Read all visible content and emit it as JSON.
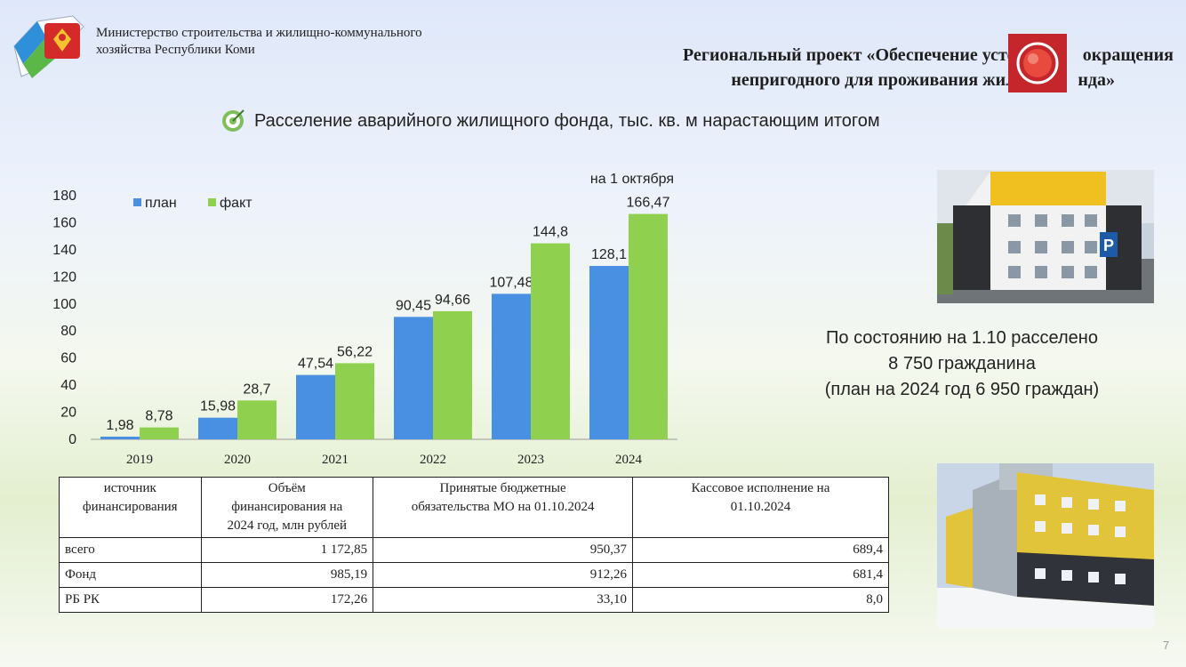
{
  "header": {
    "ministry_line1": "Министерство строительства и жилищно-коммунального",
    "ministry_line2": "хозяйства Республики Коми",
    "project_line1": "Региональный проект «Обеспечение устойчив      окращения",
    "project_line2": "непригодного для проживания жилищн      нда»"
  },
  "chart_title": "Расселение аварийного жилищного фонда, тыс. кв. м нарастающим итогом",
  "chart_data": {
    "type": "bar",
    "categories": [
      "2019",
      "2020",
      "2021",
      "2022",
      "2023",
      "2024"
    ],
    "series": [
      {
        "name": "план",
        "values": [
          1.98,
          15.98,
          47.54,
          90.45,
          107.48,
          128.1
        ],
        "labels": [
          "1,98",
          "15,98",
          "47,54",
          "90,45",
          "107,48",
          "128,1"
        ],
        "color": "#4a90e2"
      },
      {
        "name": "факт",
        "values": [
          8.78,
          28.7,
          56.22,
          94.66,
          144.8,
          166.47
        ],
        "labels": [
          "8,78",
          "28,7",
          "56,22",
          "94,66",
          "144,8",
          "166,47"
        ],
        "color": "#8fd14f"
      }
    ],
    "ylim": [
      0,
      180
    ],
    "yticks": [
      0,
      20,
      40,
      60,
      80,
      100,
      120,
      140,
      160,
      180
    ],
    "annotation": "на 1 октября",
    "legend_position": "top-left",
    "grid": false
  },
  "status": {
    "line1": "По состоянию на 1.10 расселено",
    "line2": "8 750 гражданина",
    "line3": "(план на 2024 год 6 950 граждан)"
  },
  "table": {
    "headers": [
      [
        "источник",
        "финансирования"
      ],
      [
        "Объём",
        "финансирования на",
        "2024 год, млн рублей"
      ],
      [
        "Принятые бюджетные",
        "обязательства МО на 01.10.2024"
      ],
      [
        "Кассовое исполнение на",
        "01.10.2024"
      ]
    ],
    "rows": [
      [
        "всего",
        "1 172,85",
        "950,37",
        "689,4"
      ],
      [
        "Фонд",
        "985,19",
        "912,26",
        "681,4"
      ],
      [
        "РБ РК",
        "172,26",
        "33,10",
        "8,0"
      ]
    ]
  },
  "page_number": "7",
  "colors": {
    "plan": "#4a90e2",
    "fact": "#8fd14f",
    "video_button": "#c4262b"
  }
}
